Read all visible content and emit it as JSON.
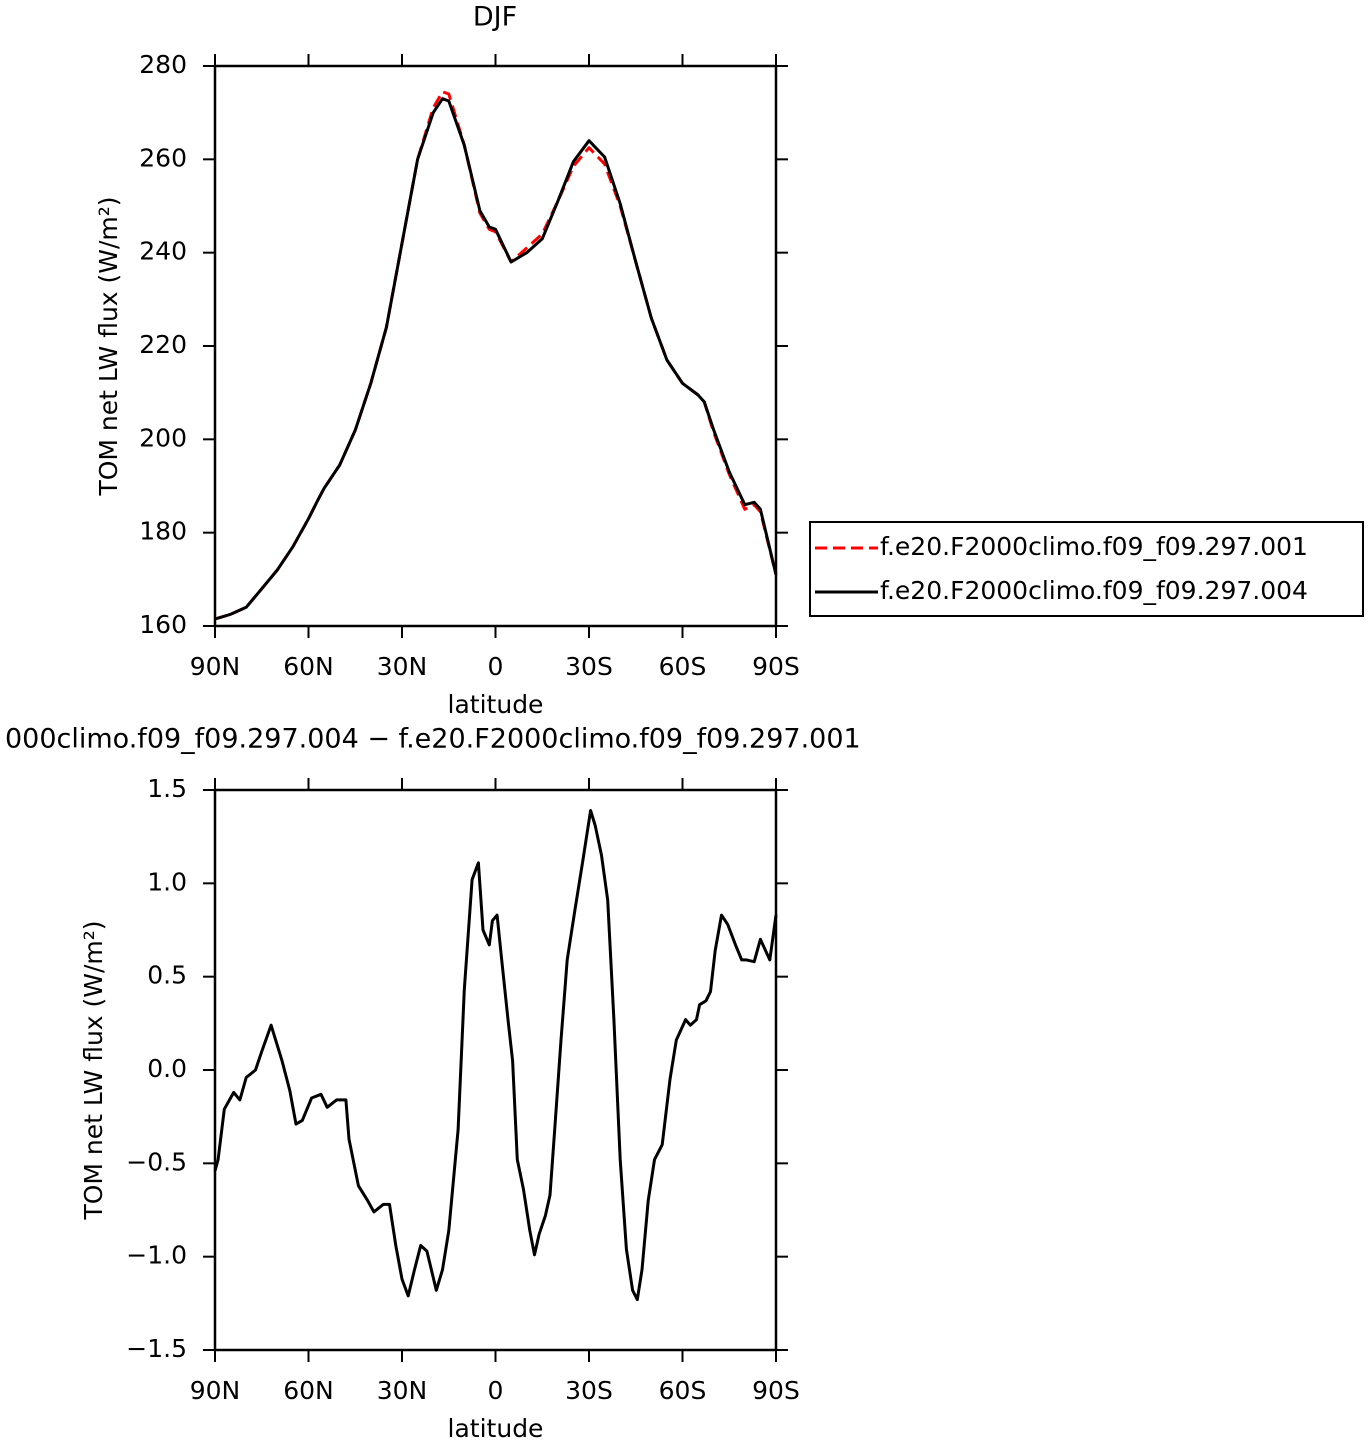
{
  "chart_data": [
    {
      "type": "line",
      "title": "DJF",
      "x_label": "latitude",
      "y_label": "TOM net LW flux (W/m²)",
      "xlim": [
        90,
        -90
      ],
      "xticks": [
        {
          "value": 90,
          "label": "90N"
        },
        {
          "value": 60,
          "label": "60N"
        },
        {
          "value": 30,
          "label": "30N"
        },
        0,
        {
          "value": -30,
          "label": "30S"
        },
        {
          "value": -60,
          "label": "60S"
        },
        {
          "value": -90,
          "label": "90S"
        }
      ],
      "ylim": [
        160,
        280
      ],
      "yticks": [
        160,
        180,
        200,
        220,
        240,
        260,
        280
      ],
      "legend": "right",
      "x": [
        90,
        85,
        80,
        75,
        70,
        65,
        60,
        57,
        55,
        50,
        45,
        40,
        35,
        30,
        25,
        20,
        17,
        15,
        10,
        5,
        2,
        0,
        -5,
        -10,
        -15,
        -20,
        -25,
        -30,
        -35,
        -40,
        -45,
        -50,
        -55,
        -60,
        -65,
        -67,
        -70,
        -75,
        -80,
        -83,
        -85,
        -90
      ],
      "series": [
        {
          "name": "f.e20.F2000climo.f09_f09.297.001",
          "color": "#ff0000",
          "dash": true,
          "values": [
            161.5,
            162.5,
            164,
            168,
            172,
            177,
            183,
            187,
            189.5,
            194.5,
            202,
            212,
            224,
            242,
            260,
            271,
            274.5,
            274,
            263,
            248.5,
            245,
            244.5,
            238,
            241,
            244,
            251,
            258.5,
            262.5,
            259,
            250,
            238,
            226,
            217,
            212,
            209.5,
            208,
            201.5,
            192.5,
            185,
            186,
            184.5,
            171
          ]
        },
        {
          "name": "f.e20.F2000climo.f09_f09.297.004",
          "color": "#000000",
          "dash": false,
          "values": [
            161.5,
            162.5,
            164,
            168,
            172,
            177,
            183,
            187,
            189.5,
            194.5,
            202,
            212,
            224,
            242,
            260,
            270,
            273,
            272.5,
            263,
            249,
            245.5,
            245,
            238,
            240,
            243,
            251,
            259.5,
            264,
            260.5,
            250.5,
            238,
            226,
            217,
            212,
            209.5,
            208,
            202,
            193,
            186,
            186.5,
            185,
            171
          ]
        }
      ]
    },
    {
      "type": "line",
      "title": "000climo.f09_f09.297.004 − f.e20.F2000climo.f09_f09.297.001",
      "x_label": "latitude",
      "y_label": "TOM net LW flux (W/m²)",
      "xlim": [
        90,
        -90
      ],
      "xticks": [
        {
          "value": 90,
          "label": "90N"
        },
        {
          "value": 60,
          "label": "60N"
        },
        {
          "value": 30,
          "label": "30N"
        },
        0,
        {
          "value": -30,
          "label": "30S"
        },
        {
          "value": -60,
          "label": "60S"
        },
        {
          "value": -90,
          "label": "90S"
        }
      ],
      "ylim": [
        -1.5,
        1.5
      ],
      "yticks": [
        {
          "value": -1.5,
          "label": "−1.5"
        },
        {
          "value": -1,
          "label": "−1.0"
        },
        {
          "value": -0.5,
          "label": "−0.5"
        },
        {
          "value": 0,
          "label": "0.0"
        },
        0.5,
        {
          "value": 1,
          "label": "1.0"
        },
        1.5
      ],
      "color": "#000000",
      "x": [
        90,
        89,
        87,
        84,
        82,
        80,
        77,
        75,
        72,
        68.5,
        66,
        64,
        62,
        59,
        56,
        54,
        51,
        48,
        47,
        44,
        41,
        39,
        36,
        34,
        32,
        30,
        28,
        26,
        24,
        22,
        19,
        17,
        15,
        12,
        10,
        7.5,
        5.5,
        4,
        2,
        1,
        -0.5,
        -2,
        -4,
        -5.5,
        -7,
        -9,
        -11,
        -12.5,
        -14,
        -16,
        -17.5,
        -19,
        -21,
        -23,
        -25.5,
        -28,
        -30.5,
        -32,
        -34,
        -36,
        -38,
        -40,
        -42,
        -44,
        -45.5,
        -47,
        -49,
        -51,
        -53.5,
        -56,
        -58,
        -61,
        -62.5,
        -64.5,
        -65.5,
        -67.5,
        -69,
        -70.5,
        -72.5,
        -74.5,
        -77,
        -79,
        -80.5,
        -83,
        -85,
        -88,
        -90
      ],
      "values": [
        -0.54,
        -0.48,
        -0.21,
        -0.12,
        -0.16,
        -0.04,
        0.0,
        0.1,
        0.24,
        0.05,
        -0.11,
        -0.29,
        -0.27,
        -0.15,
        -0.13,
        -0.2,
        -0.16,
        -0.16,
        -0.37,
        -0.62,
        -0.7,
        -0.76,
        -0.72,
        -0.72,
        -0.94,
        -1.12,
        -1.21,
        -1.07,
        -0.94,
        -0.97,
        -1.18,
        -1.07,
        -0.86,
        -0.32,
        0.43,
        1.02,
        1.11,
        0.75,
        0.67,
        0.8,
        0.83,
        0.59,
        0.27,
        0.05,
        -0.48,
        -0.64,
        -0.86,
        -0.99,
        -0.88,
        -0.78,
        -0.67,
        -0.32,
        0.16,
        0.59,
        0.86,
        1.12,
        1.39,
        1.31,
        1.15,
        0.91,
        0.27,
        -0.48,
        -0.96,
        -1.18,
        -1.23,
        -1.07,
        -0.7,
        -0.48,
        -0.4,
        -0.05,
        0.16,
        0.27,
        0.24,
        0.27,
        0.35,
        0.37,
        0.42,
        0.64,
        0.83,
        0.78,
        0.67,
        0.59,
        0.59,
        0.58,
        0.7,
        0.59,
        0.83
      ]
    }
  ]
}
